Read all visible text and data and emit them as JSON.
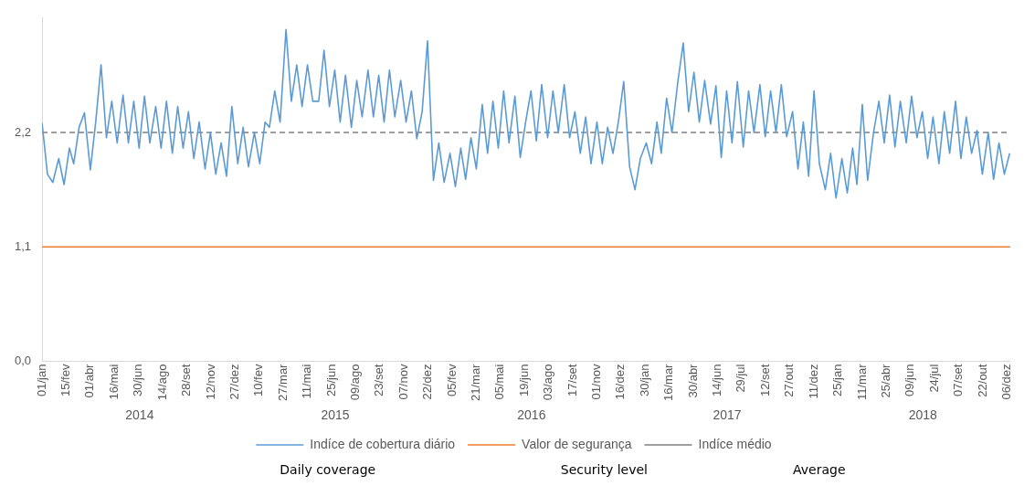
{
  "chart_data": {
    "type": "line",
    "marker": "none",
    "legend": "bottom",
    "xlim": [
      "2014-01-01",
      "2018-12-12"
    ],
    "xticks": [
      {
        "value": "2014-01-01",
        "label": "01/jan"
      },
      {
        "value": "2014-02-15",
        "label": "15/fev"
      },
      {
        "value": "2014-04-01",
        "label": "01/abr"
      },
      {
        "value": "2014-05-16",
        "label": "16/mai"
      },
      {
        "value": "2014-06-30",
        "label": "30/jun"
      },
      {
        "value": "2014-08-14",
        "label": "14/ago"
      },
      {
        "value": "2014-09-28",
        "label": "28/set"
      },
      {
        "value": "2014-11-12",
        "label": "12/nov"
      },
      {
        "value": "2014-12-27",
        "label": "27/dez"
      },
      {
        "value": "2015-02-10",
        "label": "10/fev"
      },
      {
        "value": "2015-03-27",
        "label": "27/mar"
      },
      {
        "value": "2015-05-11",
        "label": "11/mai"
      },
      {
        "value": "2015-06-25",
        "label": "25/jun"
      },
      {
        "value": "2015-08-09",
        "label": "09/ago"
      },
      {
        "value": "2015-09-23",
        "label": "23/set"
      },
      {
        "value": "2015-11-07",
        "label": "07/nov"
      },
      {
        "value": "2015-12-22",
        "label": "22/dez"
      },
      {
        "value": "2016-02-05",
        "label": "05/fev"
      },
      {
        "value": "2016-03-21",
        "label": "21/mar"
      },
      {
        "value": "2016-05-05",
        "label": "05/mai"
      },
      {
        "value": "2016-06-19",
        "label": "19/jun"
      },
      {
        "value": "2016-08-03",
        "label": "03/ago"
      },
      {
        "value": "2016-09-17",
        "label": "17/set"
      },
      {
        "value": "2016-11-01",
        "label": "01/nov"
      },
      {
        "value": "2016-12-16",
        "label": "16/dez"
      },
      {
        "value": "2017-01-30",
        "label": "30/jan"
      },
      {
        "value": "2017-03-16",
        "label": "16/mar"
      },
      {
        "value": "2017-04-30",
        "label": "30/abr"
      },
      {
        "value": "2017-06-14",
        "label": "14/jun"
      },
      {
        "value": "2017-07-29",
        "label": "29/jul"
      },
      {
        "value": "2017-09-12",
        "label": "12/set"
      },
      {
        "value": "2017-10-27",
        "label": "27/out"
      },
      {
        "value": "2017-12-11",
        "label": "11/dez"
      },
      {
        "value": "2018-01-25",
        "label": "25/jan"
      },
      {
        "value": "2018-03-11",
        "label": "11/mar"
      },
      {
        "value": "2018-04-25",
        "label": "25/abr"
      },
      {
        "value": "2018-06-09",
        "label": "09/jun"
      },
      {
        "value": "2018-07-24",
        "label": "24/jul"
      },
      {
        "value": "2018-09-07",
        "label": "07/set"
      },
      {
        "value": "2018-10-22",
        "label": "22/out"
      },
      {
        "value": "2018-12-06",
        "label": "06/dez"
      }
    ],
    "ylim": [
      0,
      3.3
    ],
    "yticks": [
      {
        "value": 0,
        "label": "0,0"
      },
      {
        "value": 1.1,
        "label": "1,1"
      },
      {
        "value": 2.2,
        "label": "2,2"
      }
    ],
    "series": [
      {
        "name": "Indíce de cobertura diário",
        "color": "#5b9bd5",
        "line_style": "solid",
        "x": [
          "2014-01-01",
          "2014-01-11",
          "2014-01-21",
          "2014-02-01",
          "2014-02-11",
          "2014-02-21",
          "2014-03-01",
          "2014-03-11",
          "2014-03-21",
          "2014-04-01",
          "2014-04-11",
          "2014-04-21",
          "2014-05-01",
          "2014-05-11",
          "2014-05-21",
          "2014-06-01",
          "2014-06-11",
          "2014-06-21",
          "2014-07-01",
          "2014-07-11",
          "2014-07-21",
          "2014-08-01",
          "2014-08-11",
          "2014-08-21",
          "2014-09-01",
          "2014-09-11",
          "2014-09-21",
          "2014-10-01",
          "2014-10-11",
          "2014-10-21",
          "2014-11-01",
          "2014-11-11",
          "2014-11-21",
          "2014-12-01",
          "2014-12-11",
          "2014-12-21",
          "2015-01-01",
          "2015-01-11",
          "2015-01-21",
          "2015-02-01",
          "2015-02-11",
          "2015-02-21",
          "2015-03-01",
          "2015-03-11",
          "2015-03-21",
          "2015-04-01",
          "2015-04-11",
          "2015-04-21",
          "2015-05-01",
          "2015-05-11",
          "2015-05-21",
          "2015-06-01",
          "2015-06-11",
          "2015-06-21",
          "2015-07-01",
          "2015-07-11",
          "2015-07-21",
          "2015-08-01",
          "2015-08-11",
          "2015-08-21",
          "2015-09-01",
          "2015-09-11",
          "2015-09-21",
          "2015-10-01",
          "2015-10-11",
          "2015-10-21",
          "2015-11-01",
          "2015-11-11",
          "2015-11-21",
          "2015-12-01",
          "2015-12-11",
          "2015-12-21",
          "2016-01-01",
          "2016-01-11",
          "2016-01-21",
          "2016-02-01",
          "2016-02-11",
          "2016-02-21",
          "2016-03-01",
          "2016-03-11",
          "2016-03-21",
          "2016-04-01",
          "2016-04-11",
          "2016-04-21",
          "2016-05-01",
          "2016-05-11",
          "2016-05-21",
          "2016-06-01",
          "2016-06-11",
          "2016-06-21",
          "2016-07-01",
          "2016-07-11",
          "2016-07-21",
          "2016-08-01",
          "2016-08-11",
          "2016-08-21",
          "2016-09-01",
          "2016-09-11",
          "2016-09-21",
          "2016-10-01",
          "2016-10-11",
          "2016-10-21",
          "2016-11-01",
          "2016-11-11",
          "2016-11-21",
          "2016-12-01",
          "2016-12-11",
          "2016-12-21",
          "2017-01-01",
          "2017-01-11",
          "2017-01-21",
          "2017-02-01",
          "2017-02-11",
          "2017-02-21",
          "2017-03-01",
          "2017-03-11",
          "2017-03-21",
          "2017-04-01",
          "2017-04-11",
          "2017-04-21",
          "2017-05-01",
          "2017-05-11",
          "2017-05-21",
          "2017-06-01",
          "2017-06-11",
          "2017-06-21",
          "2017-07-01",
          "2017-07-11",
          "2017-07-21",
          "2017-08-01",
          "2017-08-11",
          "2017-08-21",
          "2017-09-01",
          "2017-09-11",
          "2017-09-21",
          "2017-10-01",
          "2017-10-11",
          "2017-10-21",
          "2017-11-01",
          "2017-11-11",
          "2017-11-21",
          "2017-12-01",
          "2017-12-11",
          "2017-12-21",
          "2018-01-01",
          "2018-01-11",
          "2018-01-21",
          "2018-02-01",
          "2018-02-11",
          "2018-02-21",
          "2018-03-01",
          "2018-03-11",
          "2018-03-21",
          "2018-04-01",
          "2018-04-11",
          "2018-04-21",
          "2018-05-01",
          "2018-05-11",
          "2018-05-21",
          "2018-06-01",
          "2018-06-11",
          "2018-06-21",
          "2018-07-01",
          "2018-07-11",
          "2018-07-21",
          "2018-08-01",
          "2018-08-11",
          "2018-08-21",
          "2018-09-01",
          "2018-09-11",
          "2018-09-21",
          "2018-10-01",
          "2018-10-11",
          "2018-10-21",
          "2018-11-01",
          "2018-11-11",
          "2018-11-21",
          "2018-12-01",
          "2018-12-11"
        ],
        "values": [
          2.29,
          1.8,
          1.72,
          1.95,
          1.7,
          2.05,
          1.9,
          2.25,
          2.39,
          1.84,
          2.3,
          2.85,
          2.15,
          2.5,
          2.1,
          2.56,
          2.1,
          2.5,
          2.05,
          2.55,
          2.1,
          2.45,
          2.05,
          2.5,
          2.0,
          2.45,
          2.05,
          2.4,
          1.95,
          2.3,
          1.85,
          2.2,
          1.8,
          2.1,
          1.78,
          2.45,
          1.9,
          2.25,
          1.87,
          2.2,
          1.9,
          2.3,
          2.25,
          2.6,
          2.3,
          3.19,
          2.5,
          2.85,
          2.45,
          2.85,
          2.5,
          2.5,
          2.99,
          2.45,
          2.8,
          2.3,
          2.75,
          2.25,
          2.7,
          2.35,
          2.8,
          2.35,
          2.75,
          2.3,
          2.8,
          2.35,
          2.7,
          2.3,
          2.6,
          2.14,
          2.4,
          3.08,
          1.74,
          2.1,
          1.72,
          2.0,
          1.68,
          2.05,
          1.75,
          2.15,
          1.85,
          2.47,
          2.0,
          2.5,
          2.05,
          2.6,
          2.1,
          2.55,
          1.96,
          2.3,
          2.6,
          2.12,
          2.66,
          2.15,
          2.6,
          2.2,
          2.66,
          2.15,
          2.4,
          2.0,
          2.35,
          1.9,
          2.3,
          1.9,
          2.25,
          2.0,
          2.3,
          2.69,
          1.87,
          1.65,
          1.95,
          2.1,
          1.9,
          2.3,
          2.0,
          2.53,
          2.2,
          2.69,
          3.06,
          2.4,
          2.78,
          2.3,
          2.7,
          2.28,
          2.65,
          1.96,
          2.6,
          2.1,
          2.69,
          2.06,
          2.6,
          2.2,
          2.66,
          2.16,
          2.6,
          2.2,
          2.66,
          2.16,
          2.4,
          1.85,
          2.3,
          1.78,
          2.6,
          1.9,
          1.65,
          2.0,
          1.57,
          1.95,
          1.62,
          2.05,
          1.7,
          2.47,
          1.74,
          2.2,
          2.5,
          2.1,
          2.56,
          2.06,
          2.5,
          2.1,
          2.55,
          2.15,
          2.4,
          1.95,
          2.35,
          1.9,
          2.4,
          2.0,
          2.5,
          1.95,
          2.35,
          2.0,
          2.22,
          1.8,
          2.2,
          1.75,
          2.1,
          1.8,
          2.0
        ]
      },
      {
        "name": "Valor de segurança",
        "color": "#ed7d31",
        "line_style": "solid",
        "x": [
          "2014-01-01",
          "2018-12-12"
        ],
        "values": [
          1.1,
          1.1
        ]
      },
      {
        "name": "Indíce médio",
        "color": "#7f7f7f",
        "line_style": "dashed",
        "x": [
          "2014-01-01",
          "2018-12-12"
        ],
        "values": [
          2.2,
          2.2
        ]
      }
    ],
    "annotations": [
      "2014",
      "2015",
      "2016",
      "2017",
      "2018",
      "Daily coverage",
      "Security level",
      "Average"
    ]
  }
}
